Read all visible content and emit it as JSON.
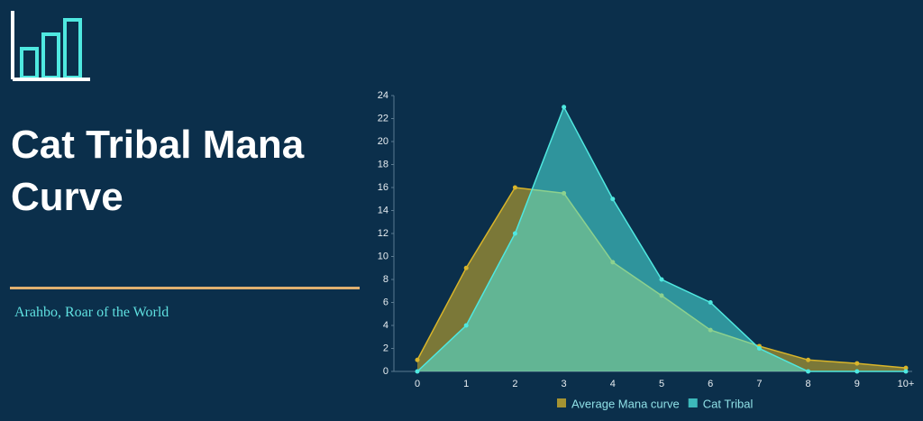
{
  "chart_data": {
    "type": "area",
    "title": "Cat Tribal Mana Curve",
    "subtitle": "Arahbo, Roar of the World",
    "categories": [
      "0",
      "1",
      "2",
      "3",
      "4",
      "5",
      "6",
      "7",
      "8",
      "9",
      "10+"
    ],
    "series": [
      {
        "name": "Average Mana curve",
        "color": "#d9b52a",
        "values": [
          1,
          9,
          16,
          15.5,
          9.5,
          6.6,
          3.6,
          2.2,
          1,
          0.7,
          0.3
        ]
      },
      {
        "name": "Cat Tribal",
        "color": "#4fe8e0",
        "values": [
          0,
          4,
          12,
          23,
          15,
          8,
          6,
          2,
          0,
          0,
          0
        ]
      }
    ],
    "ylim": [
      0,
      24
    ],
    "yticks": [
      0,
      2,
      4,
      6,
      8,
      10,
      12,
      14,
      16,
      18,
      20,
      22,
      24
    ]
  }
}
